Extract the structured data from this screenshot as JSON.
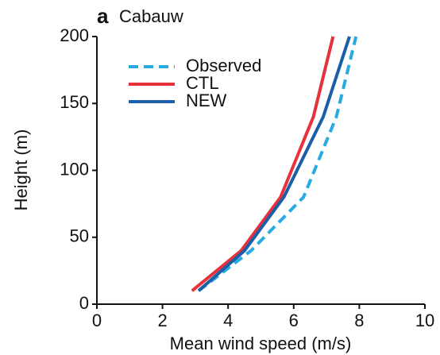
{
  "chart_data": {
    "type": "line",
    "panel_label": "a",
    "title": "Cabauw",
    "x_label": "Mean wind speed (m/s)",
    "y_label": "Height (m)",
    "xlim": [
      0,
      10
    ],
    "xticks": [
      0,
      2,
      4,
      6,
      8,
      10
    ],
    "ylim": [
      0,
      200
    ],
    "yticks": [
      0,
      50,
      100,
      150,
      200
    ],
    "legend": "upper left",
    "series": [
      {
        "name": "Observed",
        "color": "#2aaae2",
        "dashed": true,
        "x": [
          3.1,
          4.7,
          6.3,
          7.3,
          7.9
        ],
        "values": [
          10,
          40,
          80,
          140,
          200
        ]
      },
      {
        "name": "CTL",
        "color": "#e8313a",
        "dashed": false,
        "x": [
          2.9,
          4.4,
          5.6,
          6.6,
          7.2
        ],
        "values": [
          10,
          40,
          80,
          140,
          200
        ]
      },
      {
        "name": "NEW",
        "color": "#1b5fa8",
        "dashed": false,
        "x": [
          3.1,
          4.5,
          5.7,
          6.9,
          7.7
        ],
        "values": [
          10,
          40,
          80,
          140,
          200
        ]
      }
    ]
  }
}
